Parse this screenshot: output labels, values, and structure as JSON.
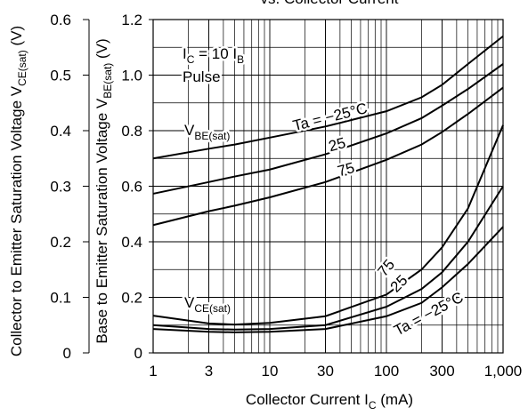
{
  "chart_data": {
    "type": "line",
    "title": "vs. Collector Current",
    "xlabel": {
      "parts": [
        {
          "text": "Collector Current  I"
        },
        {
          "sub": "C"
        },
        {
          "text": "  (mA)"
        }
      ]
    },
    "ylabel": {
      "parts": [
        {
          "text": "Collector to Emitter Saturation Voltage  V"
        },
        {
          "sub": "CE(sat)"
        },
        {
          "text": "  (V)"
        }
      ]
    },
    "y2label": {
      "parts": [
        {
          "text": "Base to Emitter Saturation Voltage  V"
        },
        {
          "sub": "BE(sat)"
        },
        {
          "text": "  (V)"
        }
      ]
    },
    "xscale": "log",
    "grid": true,
    "color": "#000000",
    "x": [
      1,
      3,
      5,
      10,
      30,
      100,
      200,
      300,
      500,
      1000
    ],
    "xlim": [
      1,
      1000
    ],
    "xticks": [
      1,
      3,
      10,
      30,
      100,
      300,
      {
        "value": 1000,
        "label": "1,000"
      }
    ],
    "ylim": [
      0,
      0.6
    ],
    "yticks": [
      0,
      0.1,
      0.2,
      0.3,
      0.4,
      0.5,
      0.6
    ],
    "y2lim": [
      0,
      1.2
    ],
    "y2ticks": [
      0,
      0.2,
      0.4,
      0.6,
      0.8,
      {
        "value": 1,
        "label": "1.0"
      },
      1.2
    ],
    "series": [
      {
        "name": "Ta = −25°C",
        "axis": "y2",
        "values": [
          0.7,
          0.735,
          0.75,
          0.775,
          0.815,
          0.87,
          0.92,
          0.965,
          1.04,
          1.14
        ]
      },
      {
        "name": "25",
        "axis": "y2",
        "values": [
          0.573,
          0.615,
          0.635,
          0.66,
          0.715,
          0.79,
          0.845,
          0.89,
          0.95,
          1.04
        ]
      },
      {
        "name": "75",
        "axis": "y2",
        "values": [
          0.46,
          0.51,
          0.53,
          0.56,
          0.615,
          0.695,
          0.75,
          0.795,
          0.86,
          0.955
        ]
      },
      {
        "name": "75",
        "axis": "y",
        "values": [
          0.067,
          0.053,
          0.051,
          0.054,
          0.066,
          0.105,
          0.15,
          0.19,
          0.26,
          0.41
        ]
      },
      {
        "name": "25",
        "axis": "y",
        "values": [
          0.05,
          0.043,
          0.042,
          0.043,
          0.05,
          0.083,
          0.115,
          0.145,
          0.2,
          0.3
        ]
      },
      {
        "name": "Ta = −25°C",
        "axis": "y",
        "values": [
          0.043,
          0.038,
          0.037,
          0.038,
          0.043,
          0.066,
          0.09,
          0.118,
          0.16,
          0.227
        ]
      }
    ],
    "annotations": [
      {
        "parts": [
          {
            "text": "I"
          },
          {
            "sub": "C"
          },
          {
            "text": " = 10 I"
          },
          {
            "sub": "B"
          }
        ]
      },
      {
        "parts": [
          {
            "text": "Pulse"
          }
        ]
      },
      {
        "parts": [
          {
            "text": "V"
          },
          {
            "sub": "BE(sat)"
          }
        ]
      },
      {
        "parts": [
          {
            "text": "V"
          },
          {
            "sub": "CE(sat)"
          }
        ]
      }
    ]
  }
}
